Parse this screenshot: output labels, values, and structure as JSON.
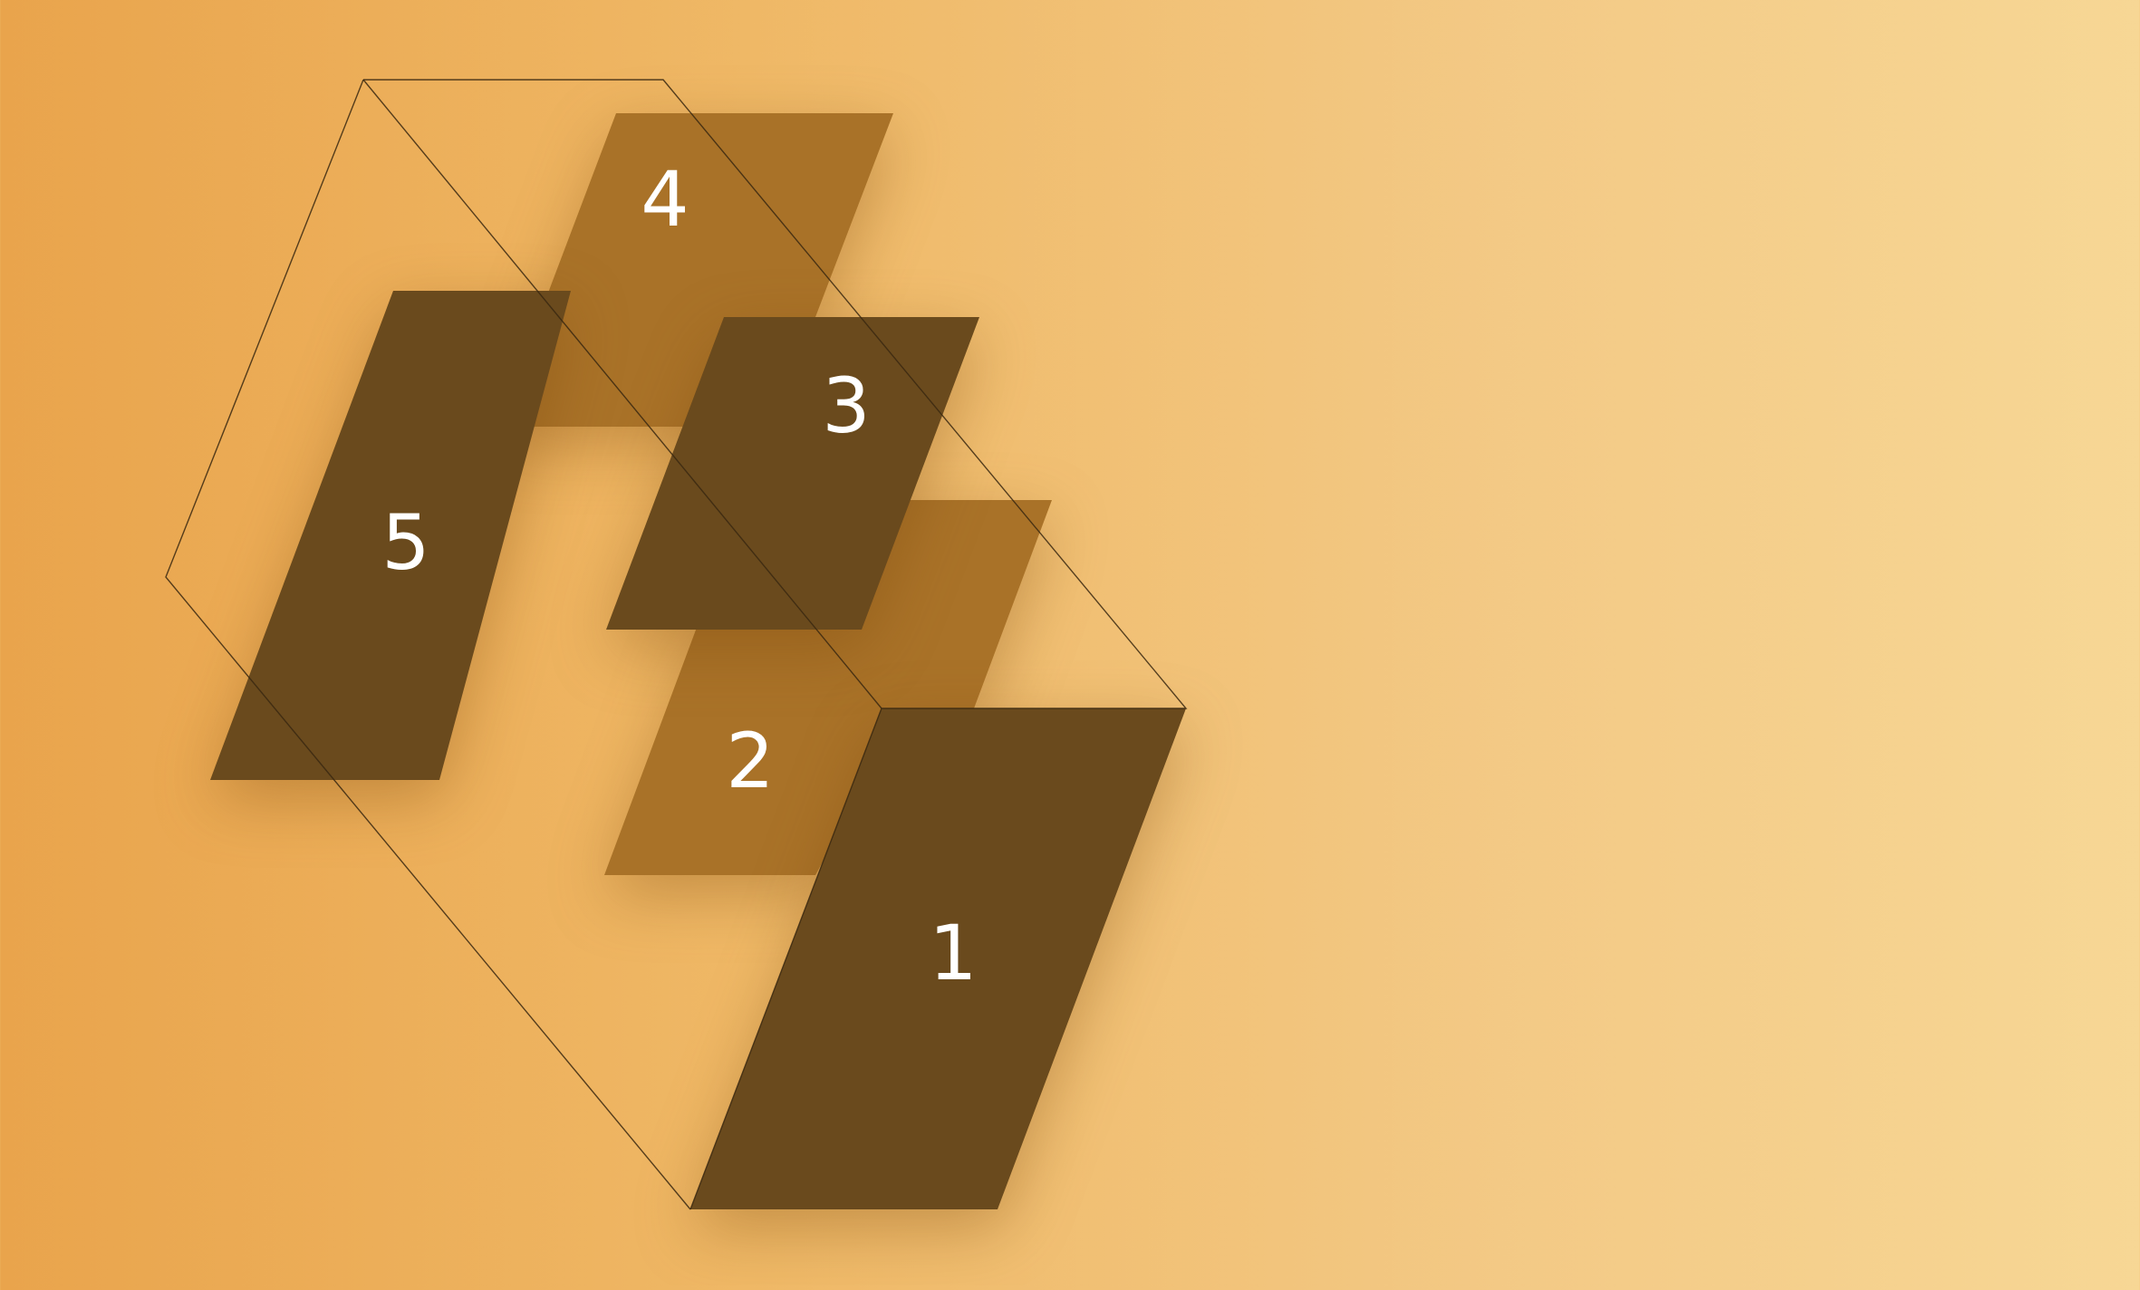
{
  "colors": {
    "background_left": "#e9a44c",
    "background_right": "#f7d795",
    "panel_dark": "#6a4a1d",
    "panel_medium": "#a97228",
    "outline": "#3a2810",
    "label": "#ffffff"
  },
  "panels": [
    {
      "label": "1",
      "tone": "dark"
    },
    {
      "label": "2",
      "tone": "medium"
    },
    {
      "label": "3",
      "tone": "dark"
    },
    {
      "label": "4",
      "tone": "medium"
    },
    {
      "label": "5",
      "tone": "dark"
    }
  ]
}
